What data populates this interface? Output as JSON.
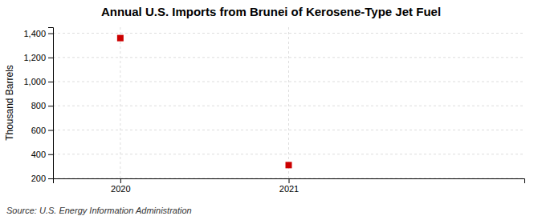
{
  "chart_data": {
    "type": "scatter",
    "title": "Annual U.S. Imports from Brunei of Kerosene-Type Jet Fuel",
    "ylabel": "Thousand Barrels",
    "source": "Source: U.S. Energy Information Administration",
    "x": [
      2020,
      2021
    ],
    "values": [
      1360,
      310
    ],
    "color": "#cc0000",
    "marker": "square",
    "xlim": [
      2019.6,
      2022.4
    ],
    "xticks": [
      2020,
      2021
    ],
    "ylim": [
      200,
      1450
    ],
    "yticks": [
      200,
      400,
      600,
      800,
      {
        "value": 1000,
        "label": "1,000"
      },
      {
        "value": 1200,
        "label": "1,200"
      },
      {
        "value": 1400,
        "label": "1,400"
      }
    ],
    "grid": true
  }
}
